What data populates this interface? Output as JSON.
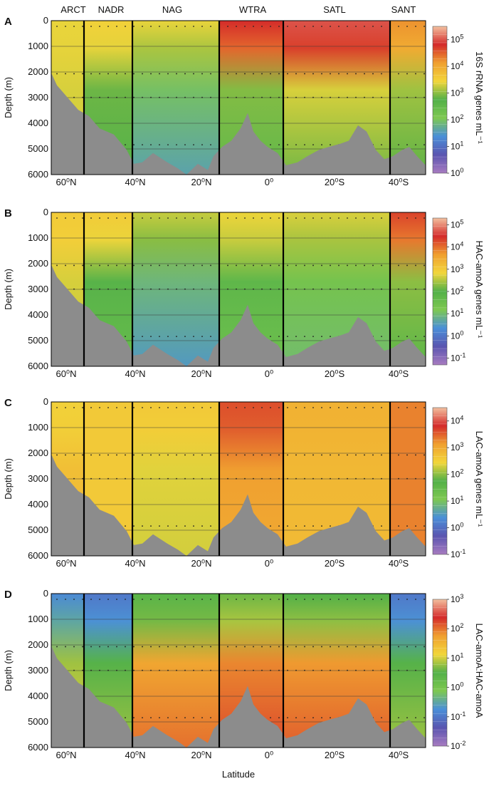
{
  "chart_data": [
    {
      "type": "heatmap",
      "panel_label": "A",
      "provinces": [
        "ARCT",
        "NADR",
        "NAG",
        "WTRA",
        "SATL",
        "SANT"
      ],
      "xticks": [
        "60⁰N",
        "40⁰N",
        "20⁰N",
        "0⁰",
        "20⁰S",
        "40⁰S"
      ],
      "yticks": [
        "0",
        "1000",
        "2000",
        "3000",
        "4000",
        "5000",
        "6000"
      ],
      "ylabel": "Depth (m)",
      "ylim": [
        6000,
        0
      ],
      "colorbar_label": "16S rRNA genes mL⁻¹",
      "colorbar_ticks": [
        {
          "base": "10",
          "exp": "5"
        },
        {
          "base": "10",
          "exp": "4"
        },
        {
          "base": "10",
          "exp": "3"
        },
        {
          "base": "10",
          "exp": "2"
        },
        {
          "base": "10",
          "exp": "1"
        },
        {
          "base": "10",
          "exp": "0"
        }
      ],
      "colorbar_range": [
        0,
        5.5
      ],
      "sections": [
        {
          "province": "ARCT",
          "upper": 3.4,
          "deep": 3.3
        },
        {
          "province": "NADR",
          "upper": 3.5,
          "deep": 2.7
        },
        {
          "province": "NAG",
          "upper": 3.4,
          "deep": 1.6
        },
        {
          "province": "WTRA",
          "upper": 4.8,
          "deep": 2.5
        },
        {
          "province": "SATL",
          "upper": 5.0,
          "deep": 2.9
        },
        {
          "province": "SANT",
          "upper": 4.2,
          "deep": 2.8
        }
      ]
    },
    {
      "type": "heatmap",
      "panel_label": "B",
      "provinces": [],
      "xticks": [
        "60⁰N",
        "40⁰N",
        "20⁰N",
        "0⁰",
        "20⁰S",
        "40⁰S"
      ],
      "yticks": [
        "0",
        "1000",
        "2000",
        "3000",
        "4000",
        "5000",
        "6000"
      ],
      "ylabel": "Depth (m)",
      "ylim": [
        6000,
        0
      ],
      "colorbar_label": "HAC-amoA genes mL⁻¹",
      "colorbar_ticks": [
        {
          "base": "10",
          "exp": "5"
        },
        {
          "base": "10",
          "exp": "4"
        },
        {
          "base": "10",
          "exp": "3"
        },
        {
          "base": "10",
          "exp": "2"
        },
        {
          "base": "10",
          "exp": "1"
        },
        {
          "base": "10",
          "exp": "0"
        },
        {
          "base": "10",
          "exp": "-1"
        }
      ],
      "colorbar_range": [
        -1.3,
        5.3
      ],
      "sections": [
        {
          "province": "ARCT",
          "upper": 3.0,
          "deep": 2.6
        },
        {
          "province": "NADR",
          "upper": 3.0,
          "deep": 1.6
        },
        {
          "province": "NAG",
          "upper": 2.6,
          "deep": 0.5
        },
        {
          "province": "WTRA",
          "upper": 2.8,
          "deep": 1.5
        },
        {
          "province": "SATL",
          "upper": 2.7,
          "deep": 1.0
        },
        {
          "province": "SANT",
          "upper": 4.3,
          "deep": 1.8
        }
      ]
    },
    {
      "type": "heatmap",
      "panel_label": "C",
      "provinces": [],
      "xticks": [
        "60⁰N",
        "40⁰N",
        "20⁰N",
        "0⁰",
        "20⁰S",
        "40⁰S"
      ],
      "yticks": [
        "0",
        "1000",
        "2000",
        "3000",
        "4000",
        "5000",
        "6000"
      ],
      "ylabel": "Depth (m)",
      "ylim": [
        6000,
        0
      ],
      "colorbar_label": "LAC-amoA genes mL⁻¹",
      "colorbar_ticks": [
        {
          "base": "10",
          "exp": "4"
        },
        {
          "base": "10",
          "exp": "3"
        },
        {
          "base": "10",
          "exp": "2"
        },
        {
          "base": "10",
          "exp": "1"
        },
        {
          "base": "10",
          "exp": "0"
        },
        {
          "base": "10",
          "exp": "-1"
        }
      ],
      "colorbar_range": [
        -1,
        4.5
      ],
      "sections": [
        {
          "province": "ARCT",
          "upper": 2.5,
          "deep": 2.8
        },
        {
          "province": "NADR",
          "upper": 2.6,
          "deep": 2.6
        },
        {
          "province": "NAG",
          "upper": 2.6,
          "deep": 2.3
        },
        {
          "province": "WTRA",
          "upper": 3.6,
          "deep": 3.0
        },
        {
          "province": "SATL",
          "upper": 2.9,
          "deep": 2.8
        },
        {
          "province": "SANT",
          "upper": 3.3,
          "deep": 3.3
        }
      ]
    },
    {
      "type": "heatmap",
      "panel_label": "D",
      "provinces": [],
      "xticks": [
        "60⁰N",
        "40⁰N",
        "20⁰N",
        "0⁰",
        "20⁰S",
        "40⁰S"
      ],
      "yticks": [
        "0",
        "1000",
        "2000",
        "3000",
        "4000",
        "5000",
        "6000"
      ],
      "ylabel": "Depth (m)",
      "xlabel": "Latitude",
      "ylim": [
        6000,
        0
      ],
      "colorbar_label": "LAC-amoA:HAC-amoA",
      "colorbar_ticks": [
        {
          "base": "10",
          "exp": "3"
        },
        {
          "base": "10",
          "exp": "2"
        },
        {
          "base": "10",
          "exp": "1"
        },
        {
          "base": "10",
          "exp": "0"
        },
        {
          "base": "10",
          "exp": "-1"
        },
        {
          "base": "10",
          "exp": "-2"
        }
      ],
      "colorbar_range": [
        -2,
        3
      ],
      "sections": [
        {
          "province": "ARCT",
          "upper": -0.8,
          "deep": 1.2
        },
        {
          "province": "NADR",
          "upper": -1.0,
          "deep": 0.8
        },
        {
          "province": "NAG",
          "upper": 0.4,
          "deep": 2.0
        },
        {
          "province": "WTRA",
          "upper": 0.6,
          "deep": 2.2
        },
        {
          "province": "SATL",
          "upper": 0.5,
          "deep": 2.1
        },
        {
          "province": "SANT",
          "upper": -1.0,
          "deep": 0.8
        }
      ]
    }
  ],
  "colors": {
    "bathymetry": "#8c8c8c",
    "grid": "#3a3a3a",
    "colormap": [
      "#a77bc0",
      "#5a55b0",
      "#4a8fd8",
      "#7ec850",
      "#52b048",
      "#f2d63a",
      "#f0a030",
      "#d42a2a",
      "#f3c1a0"
    ]
  }
}
